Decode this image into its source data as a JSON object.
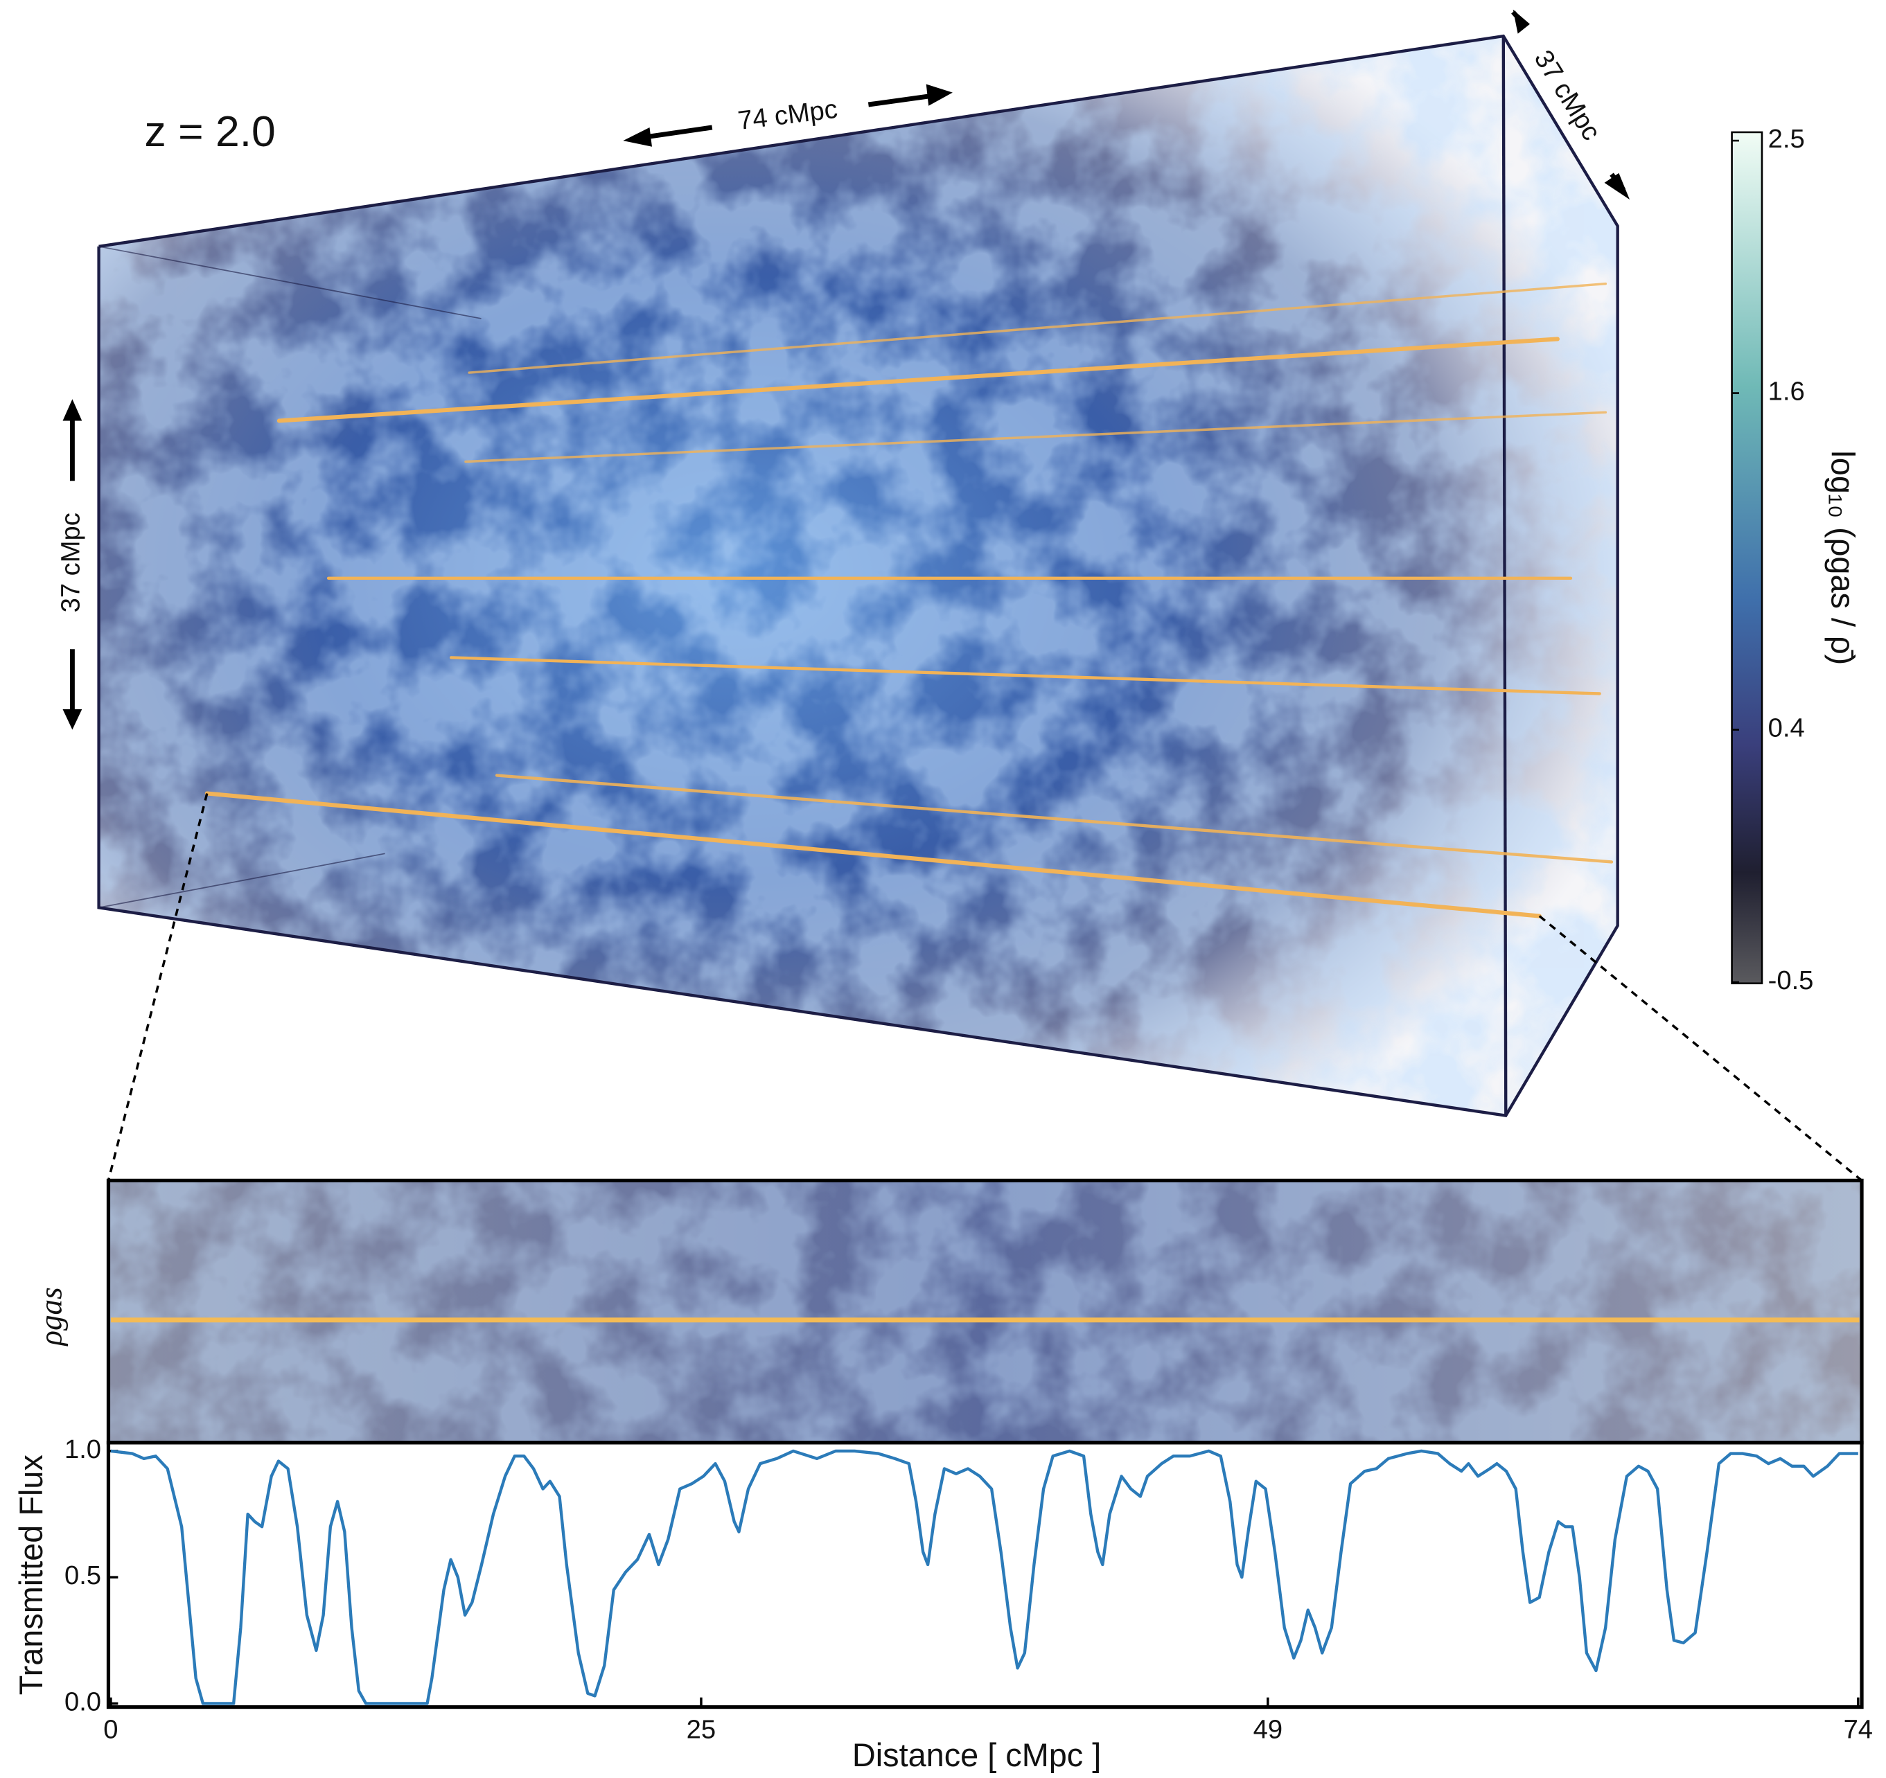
{
  "chart_data": [
    {
      "type": "line",
      "xlabel": "Distance  [ cMpc ]",
      "ylabel": "Transmitted Flux",
      "xlim": [
        0,
        74
      ],
      "ylim": [
        0,
        1
      ],
      "xticks": [
        0,
        25,
        49,
        74
      ],
      "yticks": [
        {
          "value": 0,
          "label": "0.0"
        },
        0.5,
        {
          "value": 1,
          "label": "1.0"
        }
      ],
      "color": "#2b7bb9",
      "x": [
        0,
        0.9,
        1.4,
        1.9,
        2.4,
        3.0,
        3.3,
        3.6,
        3.9,
        4.2,
        5.2,
        5.5,
        5.8,
        6.1,
        6.4,
        6.8,
        7.1,
        7.5,
        7.9,
        8.3,
        8.7,
        9.0,
        9.3,
        9.6,
        9.9,
        10.2,
        10.5,
        10.8,
        13.4,
        13.6,
        14.1,
        14.4,
        14.7,
        15.0,
        15.3,
        15.7,
        16.2,
        16.7,
        17.1,
        17.5,
        17.9,
        18.3,
        18.6,
        19.0,
        19.3,
        19.8,
        20.2,
        20.5,
        20.9,
        21.3,
        21.8,
        22.3,
        22.8,
        23.2,
        23.6,
        24.1,
        24.6,
        25.1,
        25.6,
        26.0,
        26.4,
        26.6,
        27.0,
        27.5,
        28.2,
        28.9,
        29.9,
        30.7,
        31.5,
        32.5,
        33.2,
        33.8,
        34.1,
        34.4,
        34.6,
        34.9,
        35.3,
        35.8,
        36.3,
        36.8,
        37.3,
        37.7,
        38.1,
        38.4,
        38.7,
        39.1,
        39.5,
        39.9,
        40.6,
        41.2,
        41.5,
        41.8,
        42.0,
        42.3,
        42.8,
        43.2,
        43.6,
        43.9,
        44.5,
        45.0,
        45.7,
        46.5,
        47.0,
        47.4,
        47.7,
        47.9,
        48.2,
        48.5,
        48.9,
        49.3,
        49.7,
        50.1,
        50.4,
        50.7,
        51.0,
        51.3,
        51.7,
        52.1,
        52.5,
        53.1,
        53.6,
        54.1,
        54.9,
        55.5,
        56.2,
        56.7,
        57.2,
        57.5,
        57.9,
        58.4,
        58.7,
        59.1,
        59.5,
        59.8,
        60.1,
        60.5,
        60.9,
        61.3,
        61.6,
        61.9,
        62.2,
        62.5,
        62.9,
        63.3,
        63.7,
        64.2,
        64.7,
        65.1,
        65.5,
        65.9,
        66.2,
        66.6,
        67.1,
        67.6,
        68.1,
        68.6,
        69.1,
        69.7,
        70.2,
        70.7,
        71.2,
        71.7,
        72.1,
        72.7,
        73.2,
        74
      ],
      "values": [
        1.0,
        0.99,
        0.97,
        0.98,
        0.93,
        0.7,
        0.4,
        0.1,
        0.0,
        0.0,
        0.0,
        0.3,
        0.75,
        0.72,
        0.7,
        0.9,
        0.96,
        0.93,
        0.7,
        0.35,
        0.21,
        0.35,
        0.7,
        0.8,
        0.68,
        0.3,
        0.05,
        0.0,
        0.0,
        0.1,
        0.45,
        0.57,
        0.5,
        0.35,
        0.4,
        0.55,
        0.75,
        0.9,
        0.98,
        0.98,
        0.93,
        0.85,
        0.88,
        0.82,
        0.55,
        0.2,
        0.04,
        0.03,
        0.15,
        0.45,
        0.52,
        0.57,
        0.67,
        0.55,
        0.65,
        0.85,
        0.87,
        0.9,
        0.95,
        0.88,
        0.72,
        0.68,
        0.85,
        0.95,
        0.97,
        1.0,
        0.97,
        1.0,
        1.0,
        0.99,
        0.97,
        0.95,
        0.8,
        0.6,
        0.55,
        0.75,
        0.93,
        0.91,
        0.93,
        0.9,
        0.85,
        0.6,
        0.3,
        0.14,
        0.2,
        0.55,
        0.85,
        0.98,
        1.0,
        0.98,
        0.75,
        0.6,
        0.55,
        0.75,
        0.9,
        0.85,
        0.82,
        0.9,
        0.95,
        0.98,
        0.98,
        1.0,
        0.98,
        0.8,
        0.55,
        0.5,
        0.7,
        0.88,
        0.85,
        0.6,
        0.3,
        0.18,
        0.25,
        0.37,
        0.3,
        0.2,
        0.3,
        0.6,
        0.87,
        0.92,
        0.93,
        0.97,
        0.99,
        1.0,
        0.99,
        0.95,
        0.92,
        0.95,
        0.9,
        0.93,
        0.95,
        0.92,
        0.85,
        0.6,
        0.4,
        0.42,
        0.6,
        0.72,
        0.7,
        0.7,
        0.5,
        0.2,
        0.13,
        0.3,
        0.65,
        0.9,
        0.94,
        0.92,
        0.85,
        0.45,
        0.25,
        0.24,
        0.28,
        0.6,
        0.95,
        0.99,
        0.99,
        0.98,
        0.95,
        0.97,
        0.94,
        0.94,
        0.9,
        0.94,
        0.99,
        0.99
      ]
    },
    {
      "type": "colorbar",
      "label": "log₁₀ (ρgas / ρ̄)",
      "ylim": [
        -0.5,
        2.5
      ],
      "yticks": [
        2.5,
        1.6,
        0.4,
        -0.5
      ]
    }
  ],
  "annotations": {
    "redshift": "z = 2.0",
    "box_length": "74 cMpc",
    "box_depth": "37 cMpc",
    "box_height": "37 cMpc",
    "panel_label": "ρgas"
  }
}
